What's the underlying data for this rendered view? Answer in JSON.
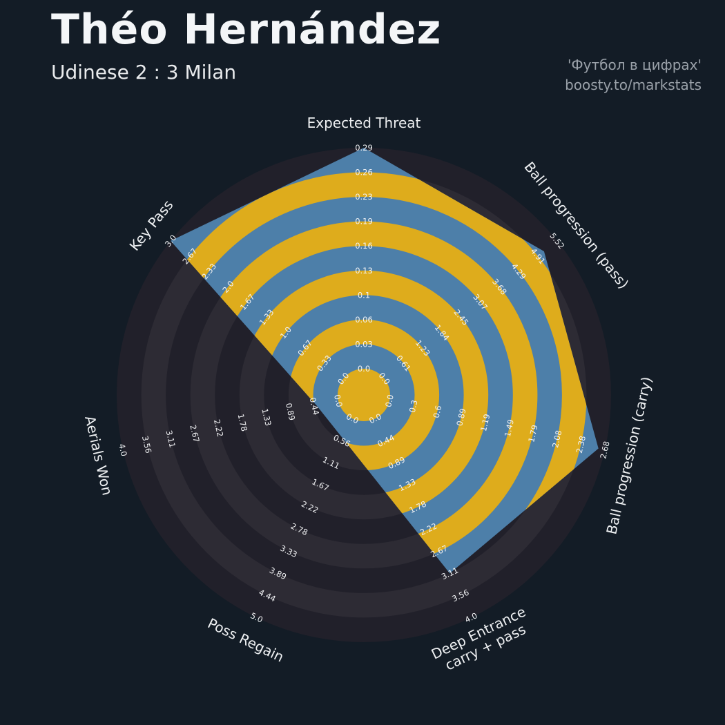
{
  "header": {
    "title": "Théo Hernández",
    "subtitle": "Udinese 2 : 3 Milan",
    "credit_line1": "'Футбол в цифрах'",
    "credit_line2": "boosty.to/markstats"
  },
  "colors": {
    "background": "#131c26",
    "ring_dark": "#21202a",
    "ring_light": "#2d2b34",
    "ring_gold": "#deac1c",
    "polygon": "#4d7fa9",
    "tick_text": "#f2f3f5",
    "axis_text": "#eef0f2",
    "credit_text": "#9aa1a9"
  },
  "chart_data": {
    "type": "radar",
    "title": "Théo Hernández",
    "subtitle": "Udinese 2 : 3 Milan",
    "params": [
      "Expected Threat",
      "Ball progression (pass)",
      "Ball progression (carry)",
      "Deep Entrance carry + pass",
      "Poss Regain",
      "Aerials Won",
      "Key Pass"
    ],
    "labels": [
      "Expected Threat",
      "Ball progression (pass)",
      "Ball progression (carry)",
      "Deep Entrance\ncarry + pass",
      "Poss Regain",
      "Aerials Won",
      "Key Pass"
    ],
    "ranges": [
      [
        0,
        0.29
      ],
      [
        0,
        5.52
      ],
      [
        0,
        2.68
      ],
      [
        0,
        4.0
      ],
      [
        0,
        5.0
      ],
      [
        0,
        4.0
      ],
      [
        0,
        3.0
      ]
    ],
    "values": [
      0.29,
      5.1,
      2.6,
      3.11,
      0.5,
      0.4,
      3.0
    ],
    "ring_ticks": [
      [
        "0.0",
        "0.03",
        "0.06",
        "0.1",
        "0.13",
        "0.16",
        "0.19",
        "0.23",
        "0.26",
        "0.29"
      ],
      [
        "0.0",
        "0.61",
        "1.23",
        "1.84",
        "2.45",
        "3.07",
        "3.68",
        "4.29",
        "4.91",
        "5.52"
      ],
      [
        "0.0",
        "0.3",
        "0.6",
        "0.89",
        "1.19",
        "1.49",
        "1.79",
        "2.08",
        "2.38",
        "2.68"
      ],
      [
        "0.0",
        "0.44",
        "0.89",
        "1.33",
        "1.78",
        "2.22",
        "2.67",
        "3.11",
        "3.56",
        "4.0"
      ],
      [
        "0.0",
        "0.56",
        "1.11",
        "1.67",
        "2.22",
        "2.78",
        "3.33",
        "3.89",
        "4.44",
        "5.0"
      ],
      [
        "0.0",
        "0.44",
        "0.89",
        "1.33",
        "1.78",
        "2.22",
        "2.67",
        "3.11",
        "3.56",
        "4.0"
      ],
      [
        "0.0",
        "0.33",
        "0.67",
        "1.0",
        "1.33",
        "1.67",
        "2.0",
        "2.33",
        "2.67",
        "3.0"
      ]
    ],
    "legend_position": "none",
    "grid": "concentric-rings"
  }
}
